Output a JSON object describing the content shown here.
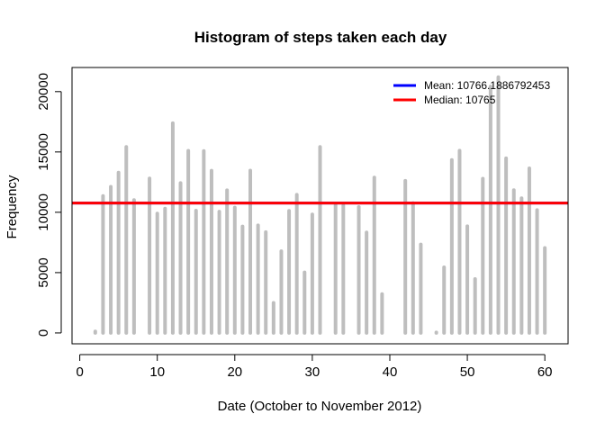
{
  "chart_data": {
    "type": "bar",
    "title": "Histogram of steps taken each day",
    "xlabel": "Date (October to November 2012)",
    "ylabel": "Frequency",
    "xlim": [
      -1,
      63
    ],
    "ylim": [
      -900,
      22000
    ],
    "xticks": [
      0,
      10,
      20,
      30,
      40,
      50,
      60
    ],
    "yticks": [
      0,
      5000,
      10000,
      15000,
      20000
    ],
    "bar_color": "#bebebe",
    "x": [
      2,
      3,
      4,
      5,
      6,
      7,
      9,
      10,
      11,
      12,
      13,
      14,
      15,
      16,
      17,
      18,
      19,
      20,
      21,
      22,
      23,
      24,
      25,
      26,
      27,
      28,
      29,
      30,
      31,
      33,
      34,
      36,
      37,
      38,
      39,
      42,
      43,
      44,
      46,
      47,
      48,
      49,
      50,
      51,
      52,
      53,
      54,
      55,
      56,
      57,
      58,
      59,
      60
    ],
    "values": [
      126,
      11352,
      12116,
      13294,
      15420,
      11015,
      12811,
      9900,
      10304,
      17382,
      12426,
      15098,
      10139,
      15084,
      13452,
      10056,
      11829,
      10395,
      8821,
      13460,
      8918,
      8355,
      2492,
      6778,
      10119,
      11458,
      5018,
      9819,
      15414,
      10600,
      10571,
      10439,
      8334,
      12883,
      3219,
      12608,
      10765,
      7336,
      41,
      5441,
      14339,
      15110,
      8841,
      4472,
      12787,
      20427,
      21194,
      14478,
      11834,
      11162,
      13646,
      10183,
      7047
    ],
    "lines": [
      {
        "name": "Mean:  10766.1886792453",
        "value": 10766.1886792453,
        "color": "#0000ff"
      },
      {
        "name": "Median:  10765",
        "value": 10765,
        "color": "#ff0000"
      }
    ],
    "legend_position": "top-right",
    "grid": false
  }
}
